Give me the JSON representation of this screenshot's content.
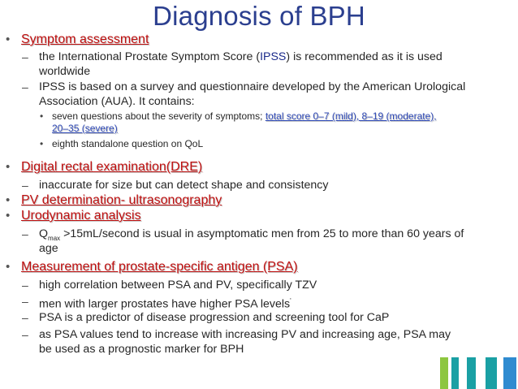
{
  "title": "Diagnosis of BPH",
  "colors": {
    "title": "#2b3f8f",
    "heading": "#c01010",
    "link": "#2e49b8",
    "bar_green": "#8dc63f",
    "bar_teal": "#1aa0a4",
    "bar_blue": "#2f8bd0"
  },
  "sections": {
    "symptom": {
      "heading": "Symptom assessment",
      "items": {
        "ipss_a": "the International Prostate Symptom Score (",
        "ipss_abbr": "IPSS",
        "ipss_b": ") is recommended as it is used",
        "ipss_c": "worldwide",
        "survey_a": "IPSS is based on a survey and questionnaire developed by the American Urological",
        "survey_b": "Association (AUA). It contains:",
        "seven_a": "seven questions about the severity of symptoms;",
        "seven_link_a": "total score 0–7 (mild), 8–19 (moderate),",
        "seven_link_b": "20–35 (severe)",
        "eighth": "eighth standalone question on QoL"
      }
    },
    "dre": {
      "heading": "Digital rectal examination(DRE)",
      "item": "inaccurate for size but can detect shape and consistency"
    },
    "pv": {
      "heading": "PV determination- ultrasonography"
    },
    "uro": {
      "heading": "Urodynamic analysis",
      "q": "Q",
      "q_sub": "max",
      "item_a": " >15mL/second is usual in asymptomatic men from 25 to more than 60 years of",
      "item_b": "age"
    },
    "psa": {
      "heading": "Measurement of prostate-specific antigen (PSA)",
      "item1": "high correlation between PSA and PV, specifically TZV",
      "item2": "men with larger prostates have higher PSA levels",
      "item2_mark": "'",
      "item3": "PSA is a predictor of disease progression and screening tool for CaP",
      "item4_a": "as PSA values tend to increase with increasing PV and increasing age, PSA may",
      "item4_b": "be used as a prognostic marker for BPH"
    }
  },
  "bullets": {
    "dot": "•",
    "dash": "–"
  }
}
